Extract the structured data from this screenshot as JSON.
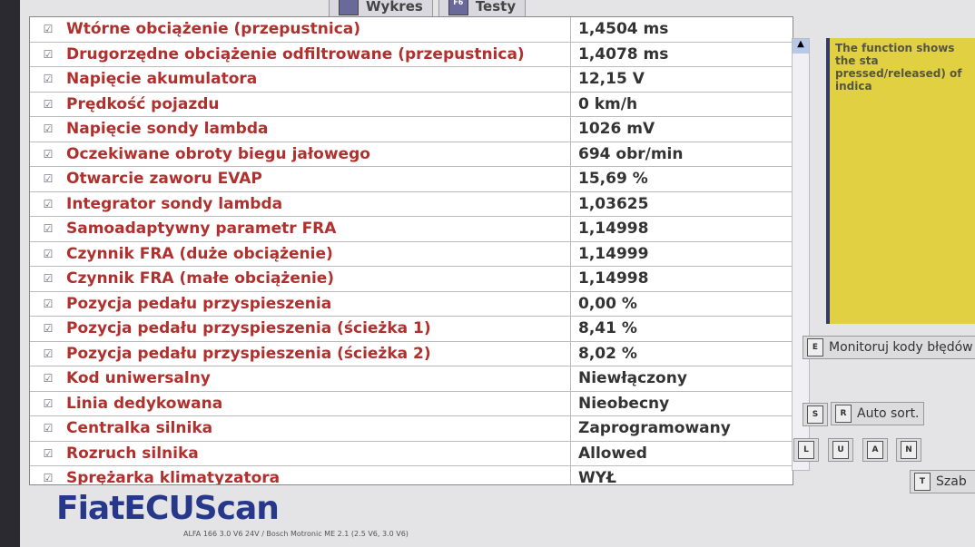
{
  "tabs": [
    {
      "label": "Wykres"
    },
    {
      "label": "Testy"
    }
  ],
  "rows": [
    {
      "name": "Wtórne obciążenie (przepustnica)",
      "value": "1,4504 ms"
    },
    {
      "name": "Drugorzędne obciążenie odfiltrowane (przepustnica)",
      "value": "1,4078 ms"
    },
    {
      "name": "Napięcie akumulatora",
      "value": "12,15 V"
    },
    {
      "name": "Prędkość pojazdu",
      "value": "0 km/h"
    },
    {
      "name": "Napięcie sondy lambda",
      "value": "1026 mV"
    },
    {
      "name": "Oczekiwane obroty biegu jałowego",
      "value": "694 obr/min"
    },
    {
      "name": "Otwarcie zaworu EVAP",
      "value": "15,69 %"
    },
    {
      "name": "Integrator sondy lambda",
      "value": "1,03625"
    },
    {
      "name": "Samoadaptywny parametr FRA",
      "value": "1,14998"
    },
    {
      "name": "Czynnik FRA (duże obciążenie)",
      "value": "1,14999"
    },
    {
      "name": "Czynnik FRA (małe obciążenie)",
      "value": "1,14998"
    },
    {
      "name": "Pozycja pedału przyspieszenia",
      "value": "0,00 %"
    },
    {
      "name": "Pozycja pedału przyspieszenia (ścieżka 1)",
      "value": "8,41 %"
    },
    {
      "name": "Pozycja pedału przyspieszenia (ścieżka 2)",
      "value": "8,02 %"
    },
    {
      "name": "Kod uniwersalny",
      "value": "Niewłączony"
    },
    {
      "name": "Linia dedykowana",
      "value": "Nieobecny"
    },
    {
      "name": "Centralka silnika",
      "value": "Zaprogramowany"
    },
    {
      "name": "Rozruch silnika",
      "value": "Allowed"
    },
    {
      "name": "Sprężarka klimatyzatora",
      "value": "WYŁ"
    }
  ],
  "help_text": "The function shows the sta pressed/released) of indica",
  "buttons": {
    "monitor": {
      "key": "E",
      "label": "Monitoruj kody błędów"
    },
    "s": "S",
    "autosort": {
      "key": "R",
      "label": "Auto sort."
    },
    "l": "L",
    "u": "U",
    "a": "A",
    "n": "N",
    "szab": {
      "key": "T",
      "label": "Szab"
    }
  },
  "logo": "FiatECUScan",
  "status": "ALFA 166 3.0 V6 24V / Bosch Motronic ME 2.1 (2.5 V6, 3.0 V6)"
}
